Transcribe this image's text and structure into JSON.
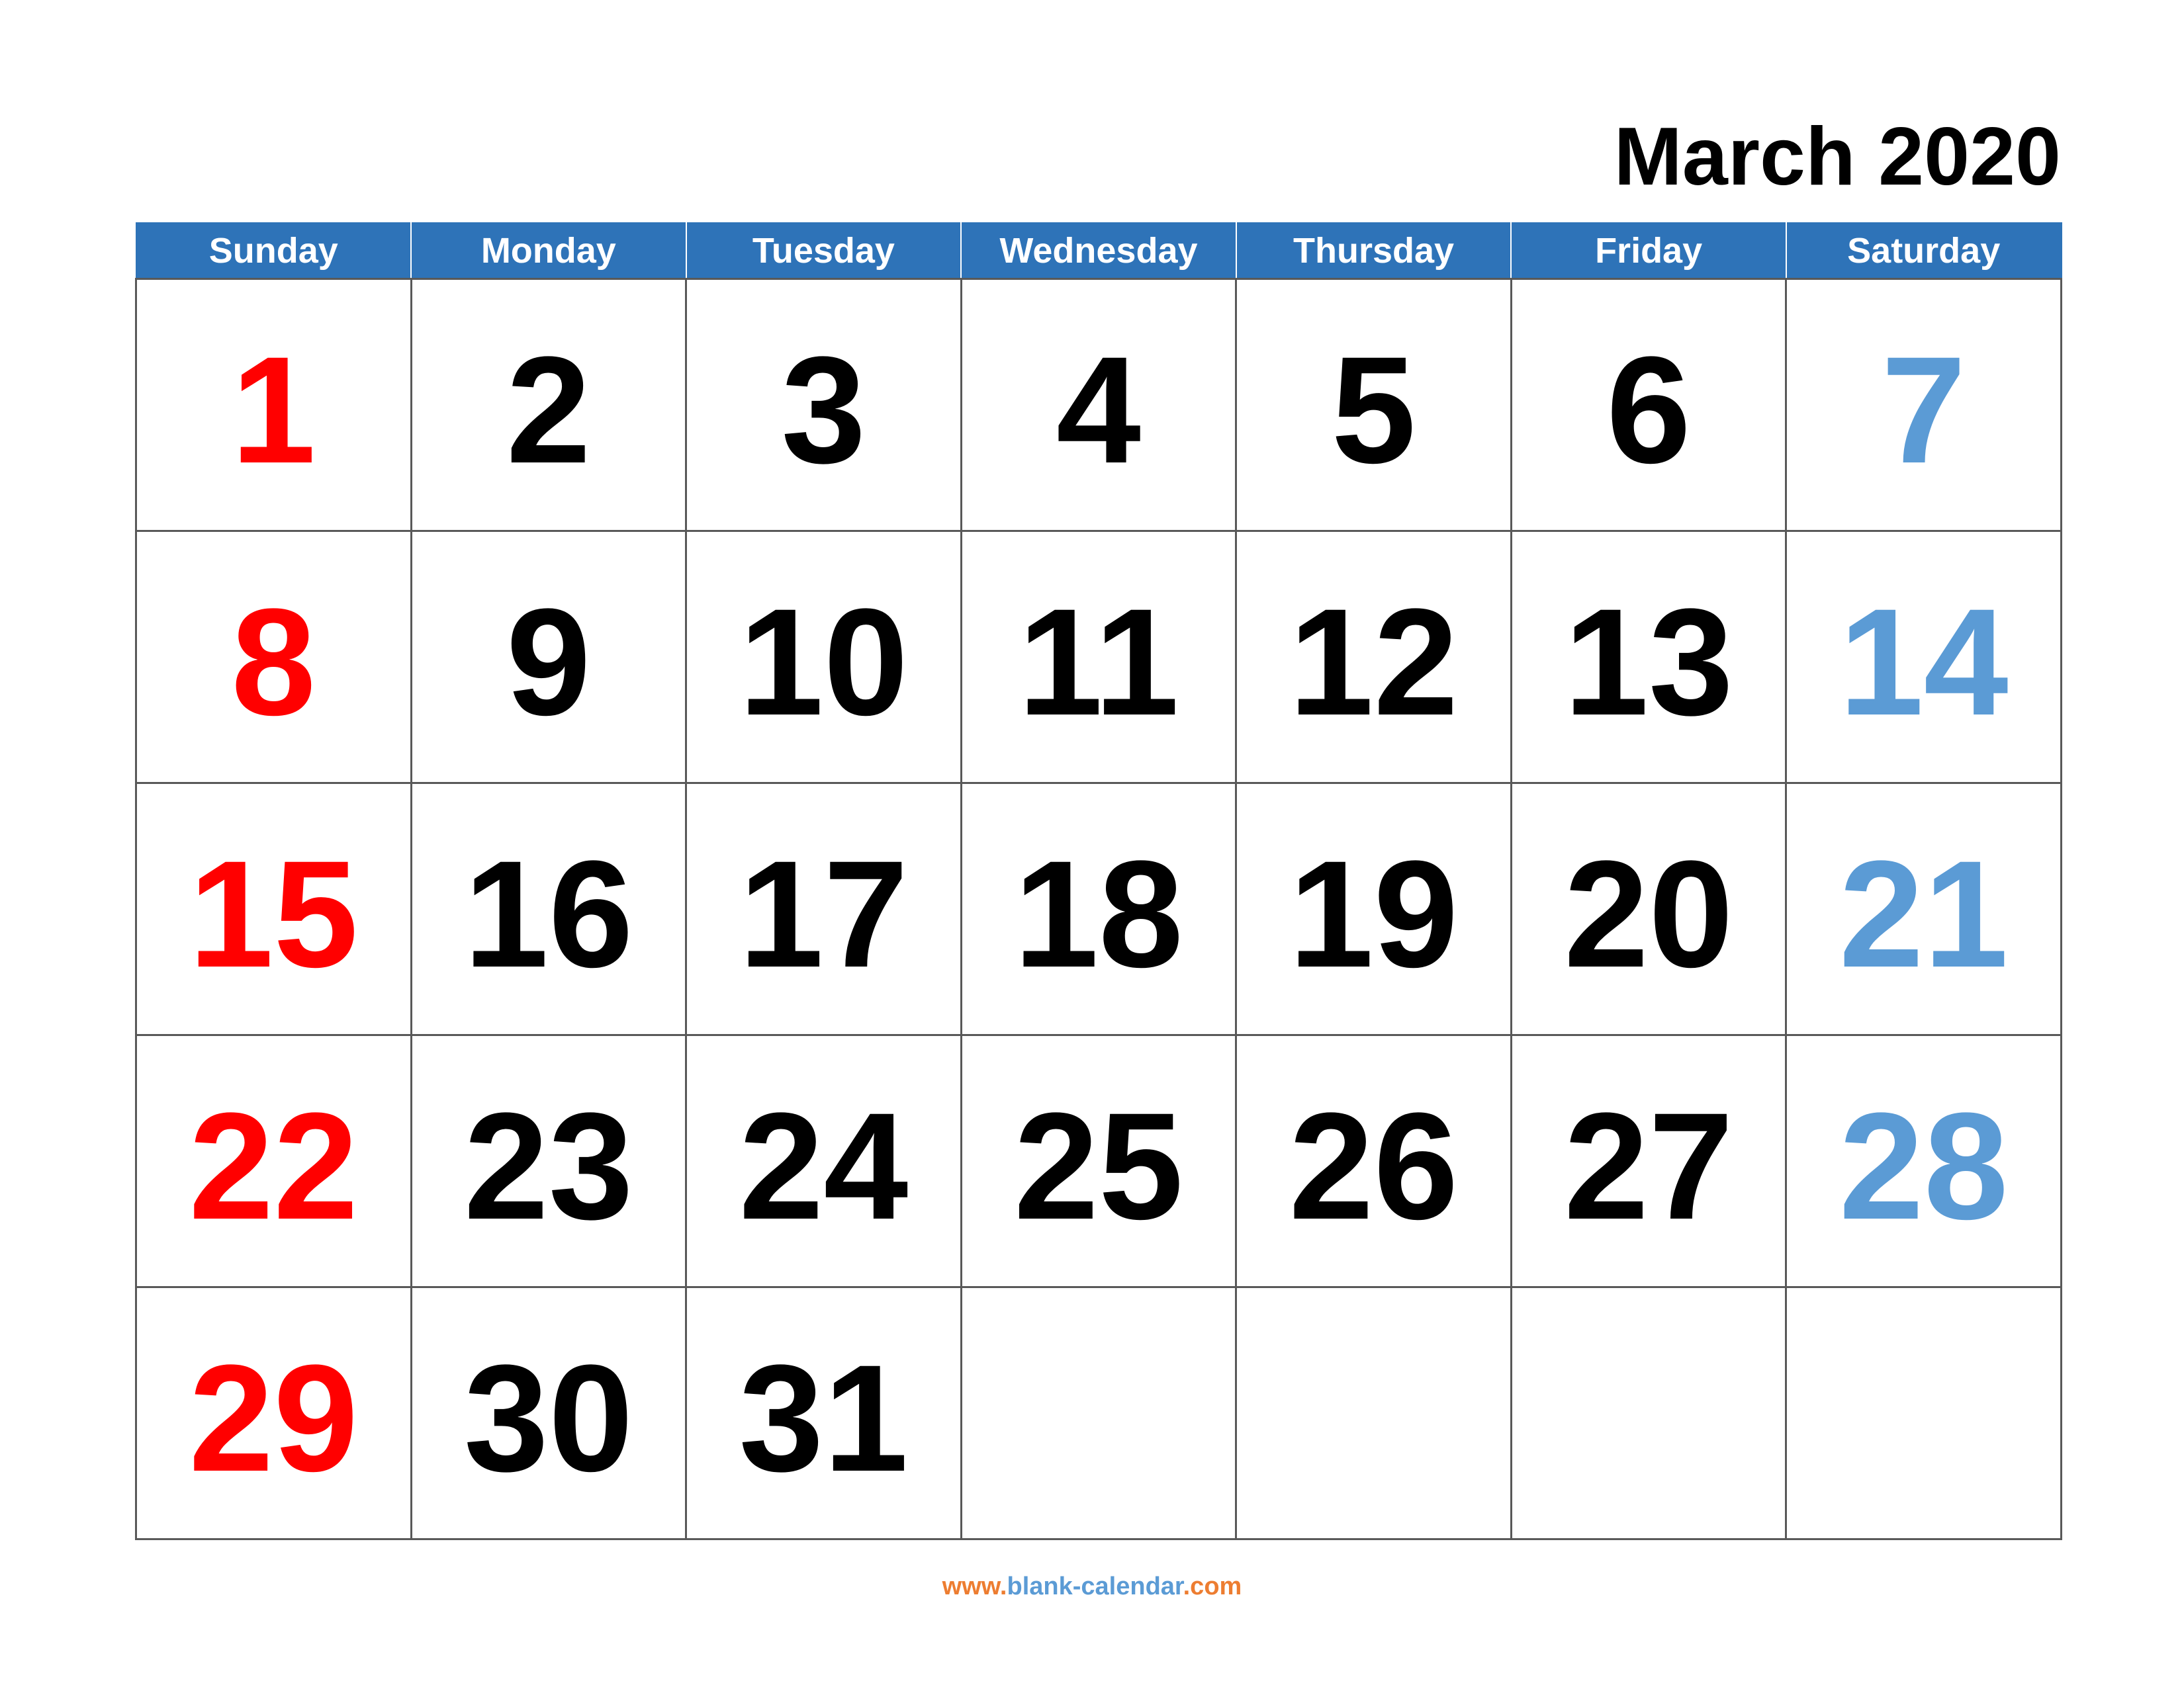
{
  "header": {
    "title": "March 2020"
  },
  "weekdays": [
    "Sunday",
    "Monday",
    "Tuesday",
    "Wednesday",
    "Thursday",
    "Friday",
    "Saturday"
  ],
  "weeks": [
    [
      "1",
      "2",
      "3",
      "4",
      "5",
      "6",
      "7"
    ],
    [
      "8",
      "9",
      "10",
      "11",
      "12",
      "13",
      "14"
    ],
    [
      "15",
      "16",
      "17",
      "18",
      "19",
      "20",
      "21"
    ],
    [
      "22",
      "23",
      "24",
      "25",
      "26",
      "27",
      "28"
    ],
    [
      "29",
      "30",
      "31",
      "",
      "",
      "",
      ""
    ]
  ],
  "colors": {
    "header_bg": "#2e73b8",
    "sunday": "#ff0000",
    "saturday": "#5b9bd5",
    "weekday": "#000000",
    "footer_accent": "#ed7d31",
    "footer_main": "#5b9bd5"
  },
  "footer": {
    "prefix": "www.",
    "domain": "blank-calendar",
    "suffix": ".com"
  }
}
